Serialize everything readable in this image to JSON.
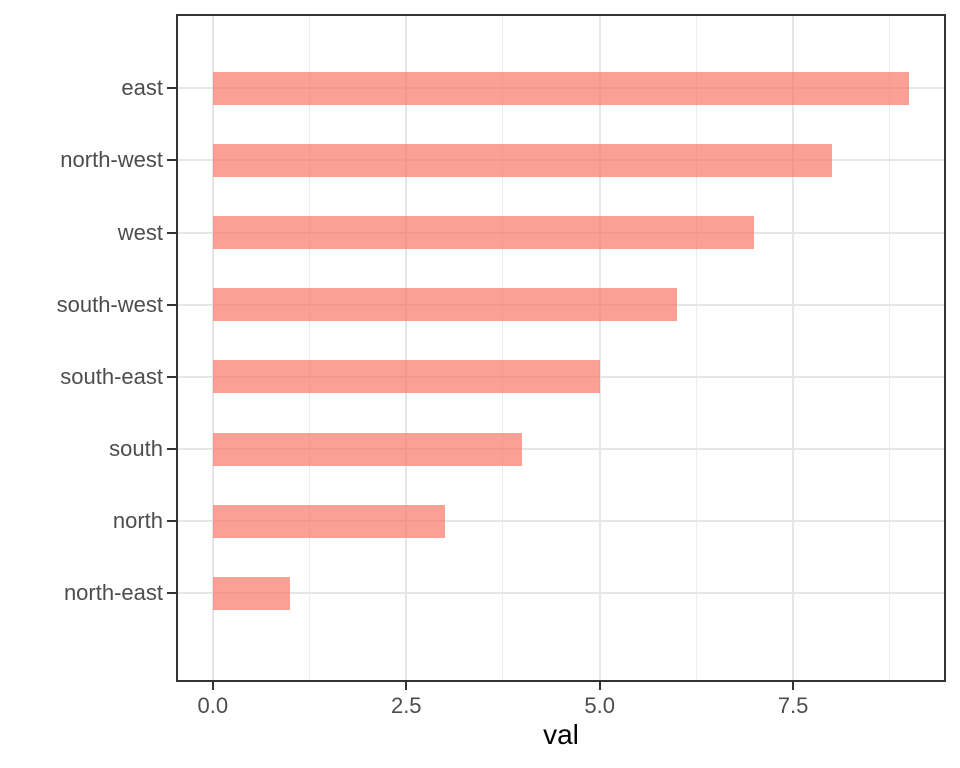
{
  "chart_data": {
    "type": "bar",
    "orientation": "horizontal",
    "title": "",
    "xlabel": "val",
    "ylabel": "",
    "categories": [
      "east",
      "north-west",
      "west",
      "south-west",
      "south-east",
      "south",
      "north",
      "north-east"
    ],
    "values": [
      9,
      8,
      7,
      6,
      5,
      4,
      3,
      1
    ],
    "xlim": [
      -0.45,
      9.45
    ],
    "x_major_ticks": [
      0,
      2.5,
      5,
      7.5
    ],
    "x_tick_labels": [
      "0.0",
      "2.5",
      "5.0",
      "7.5"
    ],
    "x_minor_gridlines": [
      1.25,
      3.75,
      6.25,
      8.75
    ],
    "grid": "on",
    "legend_position": "none",
    "colors": {
      "bar_fill_base": "#F8766D",
      "bar_fill_rgba": "rgba(246,116,98,0.68)",
      "grid_major": "#E6E6E6",
      "grid_minor": "#EDEDED",
      "panel_border": "#333333",
      "panel_background": "#FFFFFF",
      "tick_mark": "#333333",
      "tick_label": "#4D4D4D",
      "axis_title": "#000000"
    }
  }
}
